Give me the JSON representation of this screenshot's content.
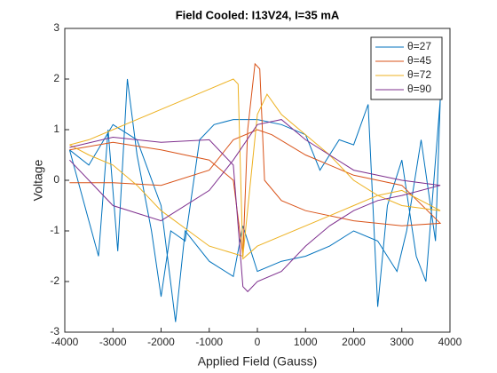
{
  "chart_data": {
    "type": "line",
    "title": "Field Cooled: I13V24, I=35 mA",
    "xlabel": "Applied Field (Gauss)",
    "ylabel": "Voltage",
    "xlim": [
      -4000,
      4000
    ],
    "ylim": [
      -3,
      3
    ],
    "xticks": [
      -4000,
      -3000,
      -2000,
      -1000,
      0,
      1000,
      2000,
      3000,
      4000
    ],
    "yticks": [
      -3,
      -2,
      -1,
      0,
      1,
      2,
      3
    ],
    "grid": false,
    "legend": "northeast",
    "series": [
      {
        "name": "θ=27",
        "color": "#0072BD",
        "x": [
          -3900,
          -3500,
          -3300,
          -3100,
          -2900,
          -2700,
          -2500,
          -2200,
          -2000,
          -1800,
          -1500,
          -1200,
          -900,
          -500,
          0,
          500,
          1000,
          1300,
          1700,
          2000,
          2300,
          2500,
          2700,
          3000,
          3300,
          3500,
          3800,
          3700,
          3400,
          3100,
          2900,
          2500,
          2000,
          1500,
          1000,
          500,
          0,
          -300,
          -500,
          -1000,
          -1500,
          -1700,
          -2000,
          -2500,
          -3000,
          -3500,
          -3900
        ],
        "values": [
          0.6,
          -0.8,
          -1.5,
          1.0,
          -1.4,
          2.0,
          0.5,
          -1.0,
          -2.3,
          -1.0,
          -1.2,
          0.8,
          1.1,
          1.2,
          1.2,
          1.1,
          0.9,
          0.2,
          0.8,
          0.7,
          1.5,
          -2.5,
          -0.5,
          0.4,
          -1.5,
          -2.0,
          1.6,
          -1.2,
          0.8,
          -1.0,
          -1.8,
          -1.2,
          -1.0,
          -1.3,
          -1.5,
          -1.6,
          -1.8,
          -0.9,
          -1.9,
          -1.6,
          -1.0,
          -2.8,
          -0.5,
          0.8,
          1.1,
          0.3,
          0.6
        ]
      },
      {
        "name": "θ=45",
        "color": "#D95319",
        "x": [
          -3900,
          -3000,
          -2000,
          -1000,
          -500,
          -300,
          -200,
          -50,
          50,
          150,
          500,
          1000,
          2000,
          3000,
          3800,
          3000,
          2000,
          1000,
          300,
          0,
          -500,
          -1000,
          -2000,
          -3000,
          -3900
        ],
        "values": [
          0.6,
          0.75,
          0.6,
          0.4,
          0.0,
          -1.5,
          1.0,
          2.3,
          2.2,
          0.0,
          -0.4,
          -0.6,
          -0.8,
          -0.9,
          -0.85,
          -0.1,
          0.1,
          0.5,
          0.9,
          1.0,
          0.8,
          0.2,
          -0.1,
          -0.05,
          -0.05
        ]
      },
      {
        "name": "θ=72",
        "color": "#EDB120",
        "x": [
          -3900,
          -3500,
          -3000,
          -2500,
          -2000,
          -1500,
          -1000,
          -500,
          -400,
          -300,
          0,
          500,
          1000,
          1500,
          2000,
          2500,
          3000,
          3800,
          3000,
          2500,
          2000,
          1500,
          1000,
          500,
          200,
          0,
          -300,
          -1000,
          -2000,
          -2500,
          -3000,
          -3500,
          -3900
        ],
        "values": [
          0.7,
          0.8,
          1.0,
          1.2,
          1.4,
          1.6,
          1.8,
          2.0,
          1.9,
          -1.55,
          -1.3,
          -1.1,
          -0.9,
          -0.7,
          -0.5,
          -0.3,
          -0.2,
          -0.6,
          -0.5,
          -0.3,
          0.0,
          0.5,
          0.9,
          1.3,
          1.7,
          1.3,
          -1.5,
          -1.3,
          -0.6,
          -0.1,
          0.3,
          0.5,
          0.7
        ]
      },
      {
        "name": "θ=90",
        "color": "#7E2F8E",
        "x": [
          -3900,
          -3000,
          -2000,
          -1000,
          -500,
          -300,
          -200,
          0,
          500,
          1000,
          1500,
          2000,
          2500,
          3000,
          3800,
          3000,
          2000,
          1000,
          500,
          0,
          -500,
          -1000,
          -2000,
          -3000,
          -3900
        ],
        "values": [
          0.65,
          0.85,
          0.75,
          0.8,
          0.3,
          -2.1,
          -2.2,
          -2.0,
          -1.8,
          -1.3,
          -0.9,
          -0.6,
          -0.4,
          -0.3,
          -0.1,
          0.0,
          0.2,
          0.8,
          1.2,
          1.1,
          0.4,
          -0.2,
          -0.8,
          -0.5,
          0.4
        ]
      }
    ]
  }
}
